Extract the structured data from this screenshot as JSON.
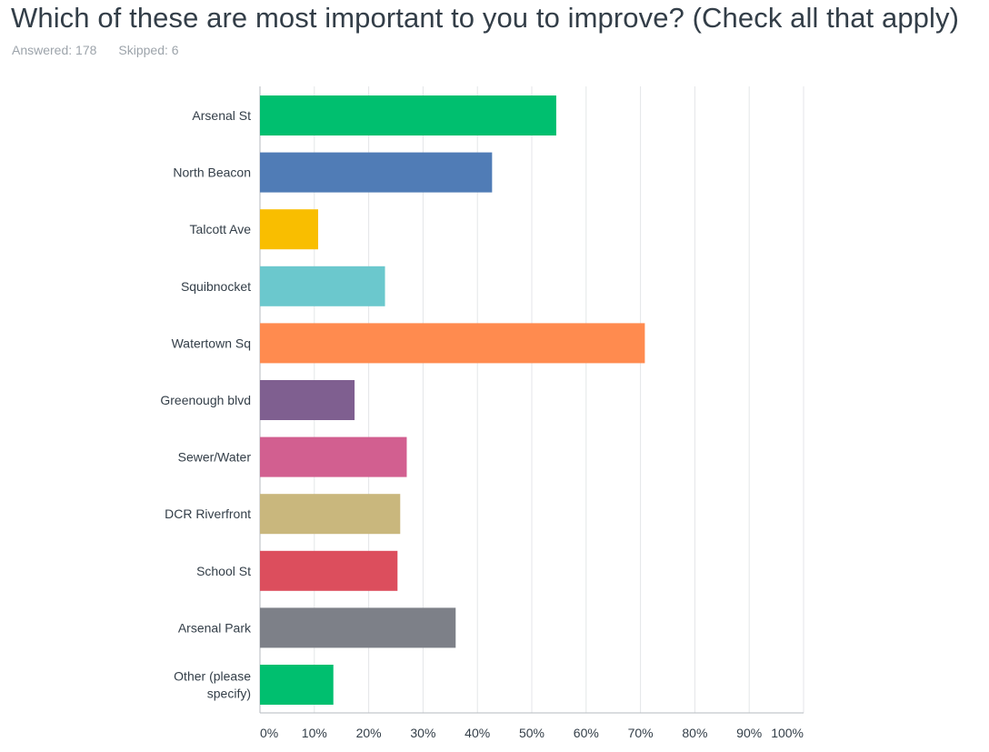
{
  "question": {
    "title": "Which of these are most important to you to improve?  (Check all that apply)",
    "answered": "Answered: 178",
    "skipped": "Skipped: 6"
  },
  "colors": {
    "grid": "#e4e6e8",
    "axis": "#b5babf"
  },
  "chart_data": {
    "type": "bar",
    "orientation": "horizontal",
    "categories": [
      "Arsenal St",
      "North Beacon",
      "Talcott Ave",
      "Squibnocket",
      "Watertown Sq",
      "Greenough blvd",
      "Sewer/Water",
      "DCR Riverfront",
      "School St",
      "Arsenal Park",
      "Other (please specify)"
    ],
    "values": [
      54.5,
      42.7,
      10.7,
      23.0,
      70.8,
      17.4,
      27.0,
      25.8,
      25.3,
      36.0,
      13.5
    ],
    "bar_colors": [
      "#00bf6f",
      "#507cb6",
      "#f9be00",
      "#6bc8cd",
      "#ff8b4f",
      "#7f5f90",
      "#d25f90",
      "#c9b77d",
      "#dc4e5d",
      "#7d8088",
      "#00bf6f"
    ],
    "xlim": [
      0,
      100
    ],
    "xticks": [
      "0%",
      "10%",
      "20%",
      "30%",
      "40%",
      "50%",
      "60%",
      "70%",
      "80%",
      "90%",
      "100%"
    ],
    "grid": true,
    "legend": "none"
  }
}
